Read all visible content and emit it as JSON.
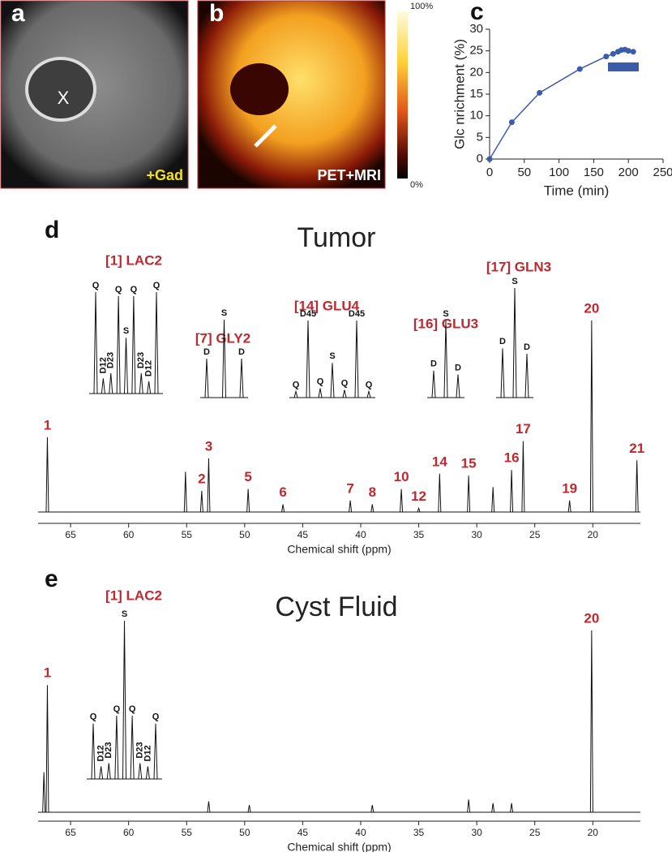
{
  "images": [
    {
      "label": "a",
      "texts": [
        "X",
        "+Gad"
      ]
    },
    {
      "label": "b",
      "texts": [
        "PET+MRI"
      ],
      "colorbar": [
        "100%",
        "0%"
      ]
    }
  ],
  "chart_data": [
    {
      "type": "line",
      "panel_label": "c",
      "xlabel": "Time (min)",
      "ylabel": "Glc nrichment (%)",
      "x": [
        0,
        32,
        72,
        130,
        168,
        178,
        185,
        190,
        195,
        200,
        207
      ],
      "values": [
        0,
        8.5,
        15.3,
        20.8,
        23.7,
        24.3,
        24.8,
        25.2,
        25.3,
        25.0,
        24.8
      ],
      "color": "#3b5bab",
      "xlim": [
        0,
        250
      ],
      "ylim": [
        0,
        30
      ],
      "xticks": [
        0,
        50,
        100,
        150,
        200,
        250
      ],
      "yticks": [
        0,
        5,
        10,
        15,
        20,
        25,
        30
      ]
    },
    {
      "type": "spectrum",
      "panel_label": "d",
      "title": "Tumor",
      "xlabel": "Chemical shift (ppm)",
      "xlim": [
        67.8,
        15.9
      ],
      "ylim": [
        0,
        100
      ],
      "xticks": [
        65,
        60,
        55,
        50,
        45,
        40,
        35,
        30,
        25,
        20
      ],
      "color": "#111111",
      "label_color": "#c0282d",
      "labels": [
        "1",
        "2",
        "3",
        null,
        "5",
        "6",
        "7",
        "8",
        "10",
        "12",
        "14",
        "15",
        null,
        "16",
        "17",
        "19",
        "20",
        "21"
      ],
      "x": [
        67.0,
        53.7,
        53.1,
        55.1,
        49.7,
        46.7,
        40.9,
        39.0,
        36.5,
        35.0,
        33.2,
        30.7,
        28.6,
        27.0,
        26.0,
        22.0,
        20.1,
        16.2
      ],
      "values": [
        39,
        11,
        28,
        21,
        12,
        4,
        6,
        4,
        12,
        2,
        20,
        19,
        13,
        22,
        37,
        6,
        100,
        27
      ],
      "insets": [
        {
          "title": "[1] LAC2",
          "labels": [
            "Q",
            "D12",
            "D23",
            "Q",
            "S",
            "Q",
            "D23",
            "D12",
            "Q"
          ],
          "values": [
            100,
            15,
            20,
            96,
            55,
            96,
            20,
            12,
            100
          ]
        },
        {
          "title": "[7] GLY2",
          "labels": [
            "D",
            "S",
            "D"
          ],
          "values": [
            30,
            60,
            30
          ]
        },
        {
          "title": "[14] GLU4",
          "labels": [
            "Q",
            "D45",
            "Q",
            "S",
            "Q",
            "D45",
            "Q"
          ],
          "values": [
            8,
            100,
            12,
            45,
            10,
            100,
            8
          ]
        },
        {
          "title": "[16] GLU3",
          "labels": [
            "D",
            "S",
            "D"
          ],
          "values": [
            35,
            100,
            30
          ]
        },
        {
          "title": "[17] GLN3",
          "labels": [
            "D",
            "S",
            "D"
          ],
          "values": [
            45,
            100,
            40
          ]
        }
      ]
    },
    {
      "type": "spectrum",
      "panel_label": "e",
      "title": "Cyst Fluid",
      "xlabel": "Chemical shift (ppm)",
      "xlim": [
        67.8,
        15.9
      ],
      "ylim": [
        0,
        100
      ],
      "xticks": [
        65,
        60,
        55,
        50,
        45,
        40,
        35,
        30,
        25,
        20
      ],
      "color": "#111111",
      "label_color": "#c0282d",
      "labels": [
        "1",
        null,
        null,
        null,
        null,
        null,
        null,
        null,
        "20"
      ],
      "x": [
        67.0,
        67.3,
        53.1,
        49.6,
        39.0,
        30.7,
        28.6,
        27.0,
        20.1
      ],
      "values": [
        70,
        22,
        6,
        4,
        4,
        7,
        5,
        5,
        100
      ],
      "insets": [
        {
          "title": "[1] LAC2",
          "labels": [
            "Q",
            "D12",
            "D23",
            "Q",
            "S",
            "Q",
            "D23",
            "D12",
            "Q"
          ],
          "values": [
            35,
            8,
            10,
            40,
            100,
            40,
            10,
            8,
            35
          ]
        }
      ]
    }
  ]
}
